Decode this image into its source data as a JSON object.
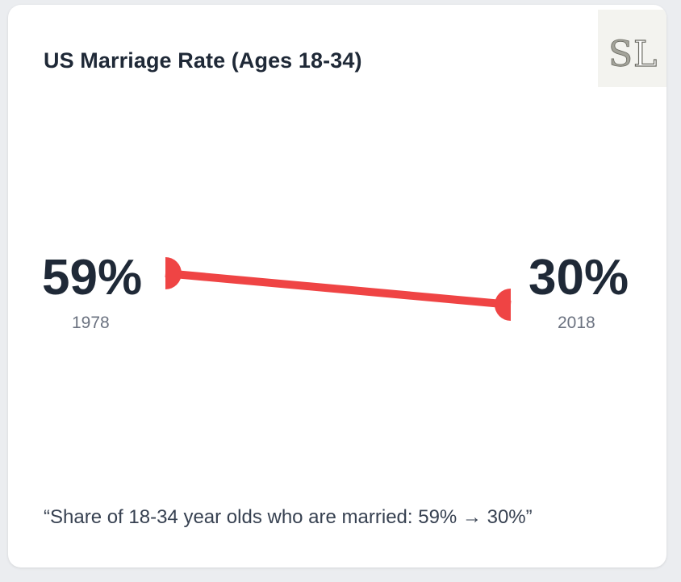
{
  "card": {
    "title": "US Marriage Rate (Ages 18-34)",
    "caption": "“Share of 18-34 year olds who are married: 59% → 30%”",
    "logo_text": "SL",
    "logo_icon": "sl-monogram-icon"
  },
  "chart_data": {
    "type": "line",
    "title": "US Marriage Rate (Ages 18-34)",
    "x": [
      "1978",
      "2018"
    ],
    "series": [
      {
        "values": [
          59,
          30
        ],
        "labels": [
          "59%",
          "30%"
        ]
      }
    ],
    "color": "#ef4444",
    "grid": false,
    "legend": "none"
  }
}
